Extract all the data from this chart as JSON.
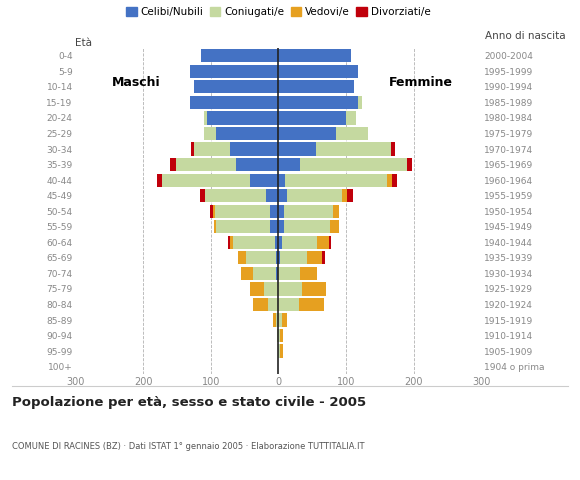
{
  "age_groups": [
    "100+",
    "95-99",
    "90-94",
    "85-89",
    "80-84",
    "75-79",
    "70-74",
    "65-69",
    "60-64",
    "55-59",
    "50-54",
    "45-49",
    "40-44",
    "35-39",
    "30-34",
    "25-29",
    "20-24",
    "15-19",
    "10-14",
    "5-9",
    "0-4"
  ],
  "birth_years": [
    "1904 o prima",
    "1905-1909",
    "1910-1914",
    "1915-1919",
    "1920-1924",
    "1925-1929",
    "1930-1934",
    "1935-1939",
    "1940-1944",
    "1945-1949",
    "1950-1954",
    "1955-1959",
    "1960-1964",
    "1965-1969",
    "1970-1974",
    "1975-1979",
    "1980-1984",
    "1985-1989",
    "1990-1994",
    "1995-1999",
    "2000-2004"
  ],
  "males": {
    "celibe": [
      0,
      0,
      0,
      0,
      0,
      0,
      3,
      3,
      5,
      12,
      12,
      18,
      42,
      62,
      72,
      92,
      105,
      130,
      125,
      130,
      115
    ],
    "coniugato": [
      0,
      0,
      2,
      4,
      15,
      22,
      35,
      45,
      62,
      80,
      82,
      90,
      130,
      90,
      52,
      18,
      5,
      0,
      0,
      0,
      0
    ],
    "vedovo": [
      0,
      0,
      0,
      4,
      22,
      20,
      18,
      12,
      5,
      3,
      2,
      0,
      0,
      0,
      0,
      0,
      0,
      0,
      0,
      0,
      0
    ],
    "divorziato": [
      0,
      0,
      0,
      0,
      0,
      0,
      0,
      0,
      3,
      0,
      5,
      8,
      8,
      8,
      5,
      0,
      0,
      0,
      0,
      0,
      0
    ]
  },
  "females": {
    "nubile": [
      0,
      0,
      0,
      0,
      0,
      0,
      0,
      2,
      5,
      8,
      8,
      12,
      10,
      32,
      55,
      85,
      100,
      118,
      112,
      118,
      108
    ],
    "coniugata": [
      0,
      2,
      2,
      5,
      30,
      35,
      32,
      40,
      52,
      68,
      72,
      82,
      150,
      158,
      112,
      48,
      15,
      5,
      0,
      0,
      0
    ],
    "vedova": [
      0,
      5,
      5,
      8,
      38,
      35,
      25,
      22,
      18,
      14,
      10,
      8,
      8,
      0,
      0,
      0,
      0,
      0,
      0,
      0,
      0
    ],
    "divorziata": [
      0,
      0,
      0,
      0,
      0,
      0,
      0,
      5,
      3,
      0,
      0,
      8,
      8,
      8,
      5,
      0,
      0,
      0,
      0,
      0,
      0
    ]
  },
  "colors": {
    "celibe": "#4472c4",
    "coniugato": "#c5d9a0",
    "vedovo": "#e6a020",
    "divorziato": "#c0000b"
  },
  "xlim": 300,
  "title": "Popolazione per età, sesso e stato civile - 2005",
  "subtitle": "COMUNE DI RACINES (BZ) · Dati ISTAT 1° gennaio 2005 · Elaborazione TUTTITALIA.IT",
  "ylabel_left": "Età",
  "ylabel_right": "Anno di nascita",
  "label_maschi": "Maschi",
  "label_femmine": "Femmine",
  "legend_labels": [
    "Celibi/Nubili",
    "Coniugati/e",
    "Vedovi/e",
    "Divorziati/e"
  ],
  "background_color": "#ffffff",
  "bar_height": 0.85,
  "grid_color": "#aaaaaa",
  "tick_color": "#888888"
}
